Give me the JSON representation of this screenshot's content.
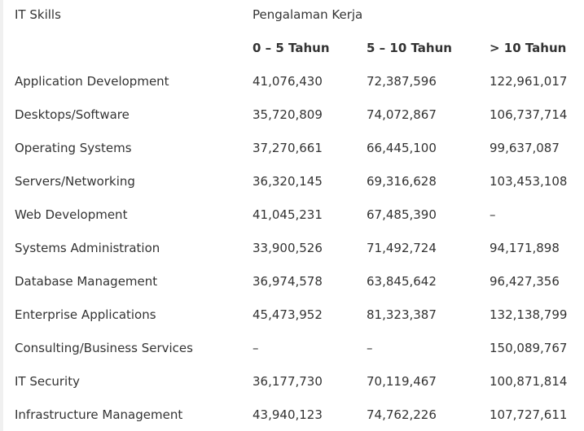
{
  "header": {
    "skills_label": "IT Skills",
    "experience_label": "Pengalaman Kerja",
    "col_0_5": "0 – 5 Tahun",
    "col_5_10": "5 – 10 Tahun",
    "col_10_plus": "> 10 Tahun"
  },
  "rows": [
    {
      "skill": "Application Development",
      "a": "41,076,430",
      "b": "72,387,596",
      "c": "122,961,017"
    },
    {
      "skill": "Desktops/Software",
      "a": "35,720,809",
      "b": "74,072,867",
      "c": "106,737,714"
    },
    {
      "skill": "Operating Systems",
      "a": "37,270,661",
      "b": "66,445,100",
      "c": "99,637,087"
    },
    {
      "skill": "Servers/Networking",
      "a": "36,320,145",
      "b": "69,316,628",
      "c": "103,453,108"
    },
    {
      "skill": "Web Development",
      "a": "41,045,231",
      "b": "67,485,390",
      "c": "–"
    },
    {
      "skill": "Systems Administration",
      "a": "33,900,526",
      "b": "71,492,724",
      "c": "94,171,898"
    },
    {
      "skill": "Database Management",
      "a": "36,974,578",
      "b": "63,845,642",
      "c": "96,427,356"
    },
    {
      "skill": "Enterprise Applications",
      "a": "45,473,952",
      "b": "81,323,387",
      "c": "132,138,799"
    },
    {
      "skill": "Consulting/Business Services",
      "a": "–",
      "b": "–",
      "c": "150,089,767"
    },
    {
      "skill": "IT Security",
      "a": "36,177,730",
      "b": "70,119,467",
      "c": "100,871,814"
    },
    {
      "skill": "Infrastructure Management",
      "a": "43,940,123",
      "b": "74,762,226",
      "c": "107,727,611"
    }
  ]
}
